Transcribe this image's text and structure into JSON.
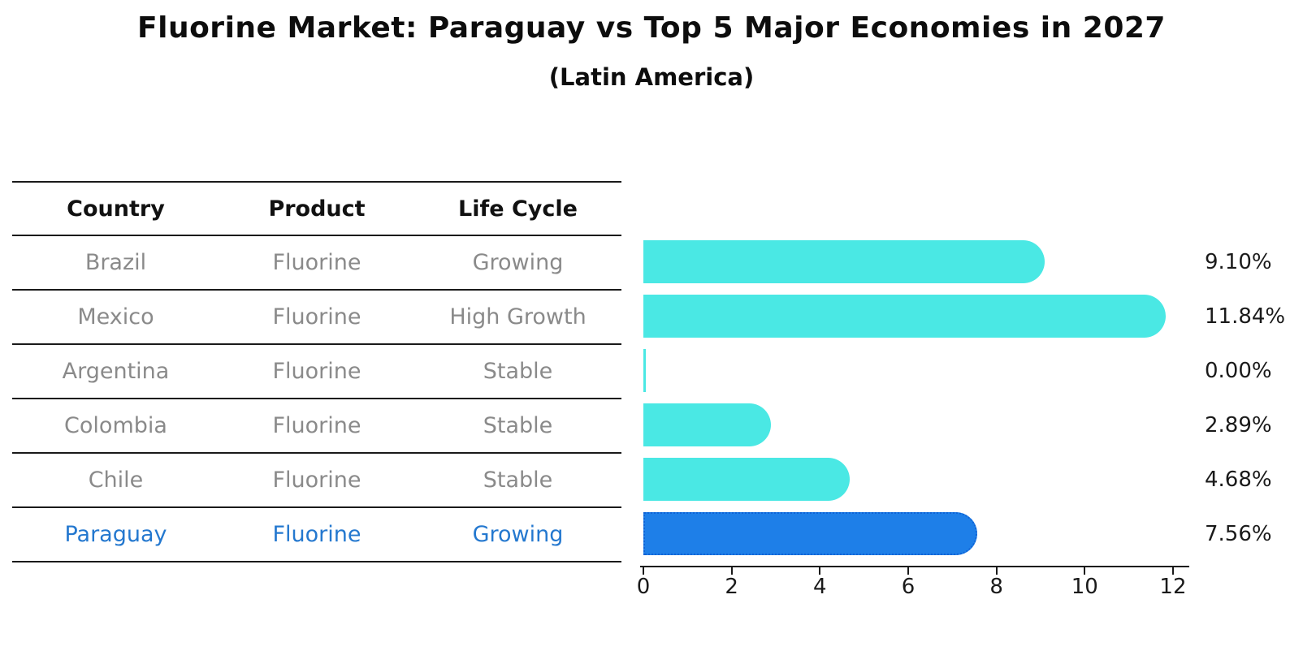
{
  "title": "Fluorine Market: Paraguay vs Top 5 Major Economies in 2027",
  "subtitle": "(Latin America)",
  "table": {
    "headers": [
      "Country",
      "Product",
      "Life Cycle"
    ],
    "rows": [
      {
        "country": "Brazil",
        "product": "Fluorine",
        "life_cycle": "Growing",
        "value": 9.1,
        "pct_label": "9.10%",
        "highlight": false
      },
      {
        "country": "Mexico",
        "product": "Fluorine",
        "life_cycle": "High Growth",
        "value": 11.84,
        "pct_label": "11.84%",
        "highlight": false
      },
      {
        "country": "Argentina",
        "product": "Fluorine",
        "life_cycle": "Stable",
        "value": 0.0,
        "pct_label": "0.00%",
        "highlight": false
      },
      {
        "country": "Colombia",
        "product": "Fluorine",
        "life_cycle": "Stable",
        "value": 2.89,
        "pct_label": "2.89%",
        "highlight": false
      },
      {
        "country": "Chile",
        "product": "Fluorine",
        "life_cycle": "Stable",
        "value": 4.68,
        "pct_label": "4.68%",
        "highlight": false
      },
      {
        "country": "Paraguay",
        "product": "Fluorine",
        "life_cycle": "Growing",
        "value": 7.56,
        "pct_label": "7.56%",
        "highlight": true
      }
    ]
  },
  "chart_data": {
    "type": "bar",
    "orientation": "horizontal",
    "title": "Fluorine Market: Paraguay vs Top 5 Major Economies in 2027",
    "subtitle": "(Latin America)",
    "categories": [
      "Brazil",
      "Mexico",
      "Argentina",
      "Colombia",
      "Chile",
      "Paraguay"
    ],
    "values": [
      9.1,
      11.84,
      0.0,
      2.89,
      4.68,
      7.56
    ],
    "value_labels": [
      "9.10%",
      "11.84%",
      "0.00%",
      "2.89%",
      "4.68%",
      "7.56%"
    ],
    "xlabel": "",
    "ylabel": "",
    "xlim": [
      0,
      12.4
    ],
    "x_ticks": [
      0,
      2,
      4,
      6,
      8,
      10,
      12
    ],
    "grid": false,
    "legend": false,
    "highlight_category": "Paraguay"
  },
  "axis": {
    "ticks": [
      "0",
      "2",
      "4",
      "6",
      "8",
      "10",
      "12"
    ]
  },
  "colors": {
    "bar_default": "#4ae8e4",
    "bar_highlight": "#1e7fe8",
    "bar_highlight_border": "#0f63d6",
    "highlight_text": "#2478cf",
    "muted_text": "#8a8a8a",
    "heading_text": "#0d0d0d",
    "axis_line": "#1a1a1a"
  }
}
